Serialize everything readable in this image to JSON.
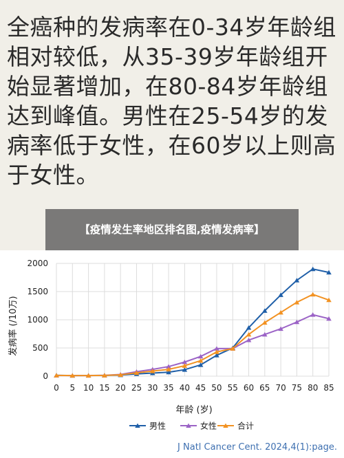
{
  "note_text": "全癌种的发病率在0-34岁年龄组相对较低，从35-39岁年龄组开始显著增加，在80-84岁年龄组达到峰值。男性在25-54岁的发病率低于女性，在60岁以上则高于女性。",
  "overlay_title": "【疫情发生率地区排名图,疫情发病率】",
  "citation": "J Natl Cancer Cent. 2024,4(1):page.",
  "colors": {
    "male": "#1f5fa8",
    "female": "#9b63c6",
    "total": "#f29222",
    "grid": "#dcdcdc",
    "axis_text": "#222222"
  },
  "chart_data": {
    "type": "line",
    "xlabel": "年龄 (岁)",
    "ylabel": "发病率 (/10万)",
    "x": [
      0,
      5,
      10,
      15,
      20,
      25,
      30,
      35,
      40,
      45,
      50,
      55,
      60,
      65,
      70,
      75,
      80,
      85
    ],
    "x_ticks": [
      "0",
      "5",
      "10",
      "15",
      "20",
      "25",
      "30",
      "35",
      "40",
      "45",
      "50",
      "55",
      "60",
      "65",
      "70",
      "75",
      "80",
      "85"
    ],
    "y_ticks": [
      "0",
      "500",
      "1000",
      "1500",
      "2000"
    ],
    "ylim": [
      0,
      2000
    ],
    "xlim": [
      0,
      85
    ],
    "grid": true,
    "legend_position": "bottom",
    "series": [
      {
        "name": "男性",
        "color_key": "male",
        "values": [
          15,
          10,
          12,
          14,
          20,
          40,
          55,
          70,
          115,
          200,
          370,
          500,
          860,
          1160,
          1440,
          1700,
          1900,
          1840
        ]
      },
      {
        "name": "女性",
        "color_key": "female",
        "values": [
          12,
          10,
          10,
          15,
          30,
          80,
          120,
          170,
          250,
          350,
          490,
          490,
          640,
          740,
          840,
          960,
          1090,
          1020
        ]
      },
      {
        "name": "合计",
        "color_key": "total",
        "values": [
          13,
          10,
          11,
          14,
          25,
          60,
          90,
          120,
          185,
          275,
          430,
          490,
          740,
          950,
          1130,
          1310,
          1450,
          1350
        ]
      }
    ]
  }
}
